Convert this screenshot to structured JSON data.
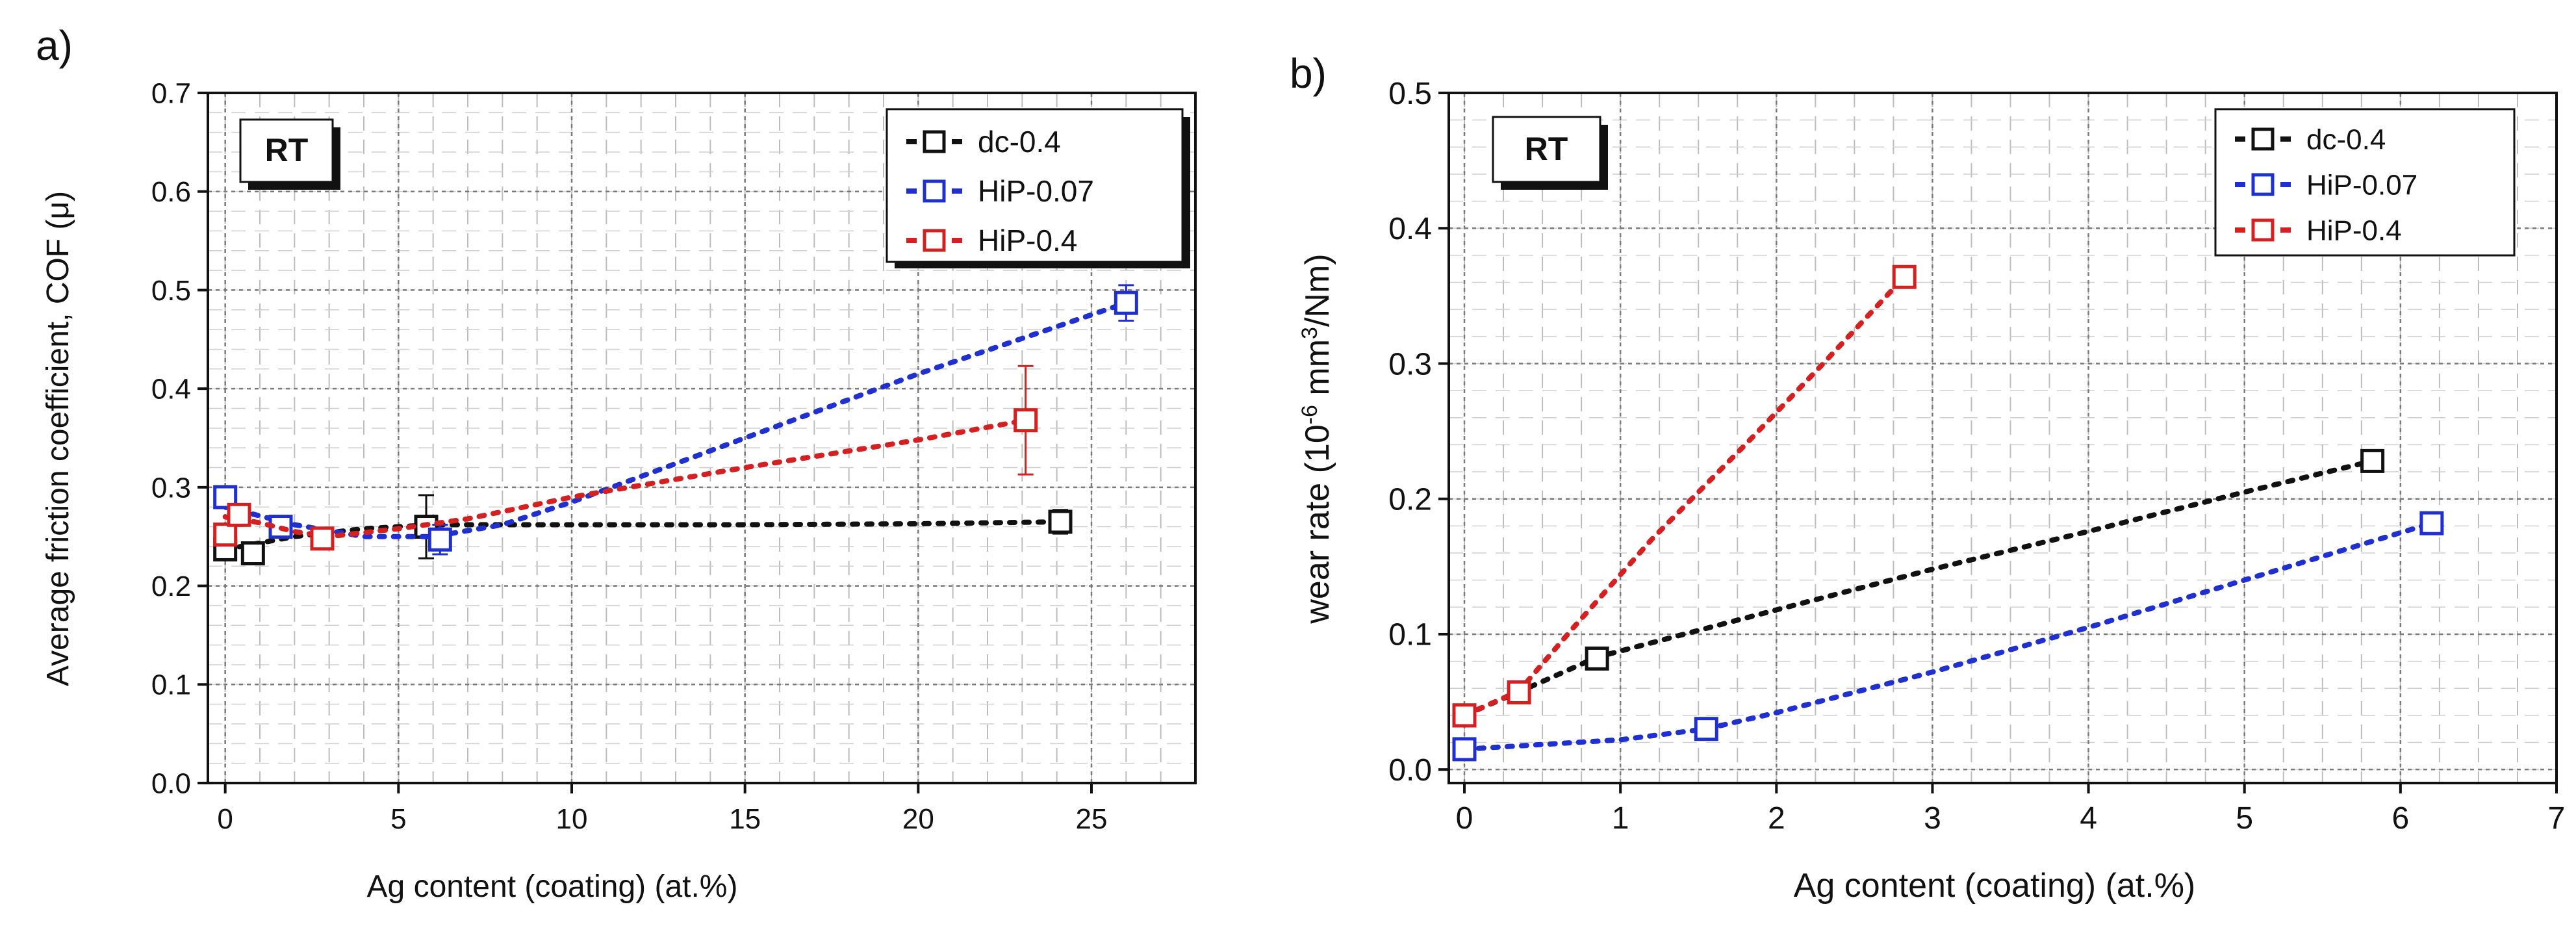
{
  "chart_data": [
    {
      "type": "scatter",
      "panel_label": "a)",
      "badge": "RT",
      "xlabel": "Ag content (coating) (at.%)",
      "ylabel": "Average friction coefficient, COF (μ)",
      "xlim": [
        -0.5,
        28
      ],
      "ylim": [
        0.0,
        0.7
      ],
      "xticks": [
        0,
        5,
        10,
        15,
        20,
        25
      ],
      "yticks": [
        0.0,
        0.1,
        0.2,
        0.3,
        0.4,
        0.5,
        0.6,
        0.7
      ],
      "x_minor_step": 1,
      "y_minor_step": 0.02,
      "legend": "top-right",
      "series": [
        {
          "name": "dc-0.4",
          "color": "#111111",
          "points": [
            {
              "x": 0,
              "y": 0.237
            },
            {
              "x": 0.8,
              "y": 0.233
            },
            {
              "x": 5.8,
              "y": 0.26,
              "err": 0.032
            },
            {
              "x": 24.1,
              "y": 0.265,
              "err": 0.012
            }
          ],
          "fit": [
            [
              0,
              0.237
            ],
            [
              2,
              0.25
            ],
            [
              4,
              0.258
            ],
            [
              6,
              0.262
            ],
            [
              10,
              0.262
            ],
            [
              15,
              0.262
            ],
            [
              20,
              0.263
            ],
            [
              24.1,
              0.265
            ]
          ]
        },
        {
          "name": "HiP-0.07",
          "color": "#1f2fd0",
          "points": [
            {
              "x": 0,
              "y": 0.29
            },
            {
              "x": 1.6,
              "y": 0.26
            },
            {
              "x": 6.2,
              "y": 0.247,
              "err": 0.015
            },
            {
              "x": 26,
              "y": 0.487,
              "err": 0.018
            }
          ],
          "fit": [
            [
              0,
              0.28
            ],
            [
              2,
              0.262
            ],
            [
              4,
              0.25
            ],
            [
              6,
              0.25
            ],
            [
              8,
              0.262
            ],
            [
              10,
              0.285
            ],
            [
              15,
              0.35
            ],
            [
              20,
              0.415
            ],
            [
              26,
              0.487
            ]
          ]
        },
        {
          "name": "HiP-0.4",
          "color": "#d42020",
          "points": [
            {
              "x": 0,
              "y": 0.252
            },
            {
              "x": 0.4,
              "y": 0.272
            },
            {
              "x": 2.8,
              "y": 0.248
            },
            {
              "x": 23.1,
              "y": 0.368,
              "err": 0.055
            }
          ],
          "fit": [
            [
              0,
              0.27
            ],
            [
              1,
              0.264
            ],
            [
              2,
              0.255
            ],
            [
              3,
              0.25
            ],
            [
              5,
              0.258
            ],
            [
              7,
              0.268
            ],
            [
              10,
              0.29
            ],
            [
              15,
              0.32
            ],
            [
              20,
              0.348
            ],
            [
              23.1,
              0.368
            ]
          ]
        }
      ]
    },
    {
      "type": "scatter",
      "panel_label": "b)",
      "badge": "RT",
      "xlabel": "Ag content (coating) (at.%)",
      "ylabel": "wear rate (10",
      "ylabel_sup1": "-6",
      "ylabel_mid": " mm",
      "ylabel_sup2": "3",
      "ylabel_end": "/Nm)",
      "xlim": [
        -0.1,
        7
      ],
      "ylim": [
        -0.01,
        0.5
      ],
      "xticks": [
        0,
        1,
        2,
        3,
        4,
        5,
        6,
        7
      ],
      "yticks": [
        0.0,
        0.1,
        0.2,
        0.3,
        0.4,
        0.5
      ],
      "x_minor_step": 0.25,
      "y_minor_step": 0.02,
      "legend": "top-right",
      "series": [
        {
          "name": "dc-0.4",
          "color": "#111111",
          "points": [
            {
              "x": 0,
              "y": 0.04
            },
            {
              "x": 0.85,
              "y": 0.082
            },
            {
              "x": 5.82,
              "y": 0.228
            }
          ],
          "fit": [
            [
              0,
              0.04
            ],
            [
              0.5,
              0.065
            ],
            [
              0.85,
              0.083
            ],
            [
              2,
              0.118
            ],
            [
              3,
              0.148
            ],
            [
              4,
              0.176
            ],
            [
              5,
              0.205
            ],
            [
              5.82,
              0.228
            ]
          ]
        },
        {
          "name": "HiP-0.07",
          "color": "#1f2fd0",
          "points": [
            {
              "x": 0,
              "y": 0.015
            },
            {
              "x": 1.55,
              "y": 0.03
            },
            {
              "x": 6.2,
              "y": 0.182
            }
          ],
          "fit": [
            [
              0,
              0.015
            ],
            [
              1,
              0.022
            ],
            [
              1.55,
              0.03
            ],
            [
              2,
              0.042
            ],
            [
              3,
              0.072
            ],
            [
              4,
              0.105
            ],
            [
              5,
              0.14
            ],
            [
              6.2,
              0.182
            ]
          ]
        },
        {
          "name": "HiP-0.4",
          "color": "#d42020",
          "points": [
            {
              "x": 0,
              "y": 0.04
            },
            {
              "x": 0.35,
              "y": 0.057
            },
            {
              "x": 2.82,
              "y": 0.364
            }
          ],
          "fit": [
            [
              0,
              0.04
            ],
            [
              0.35,
              0.058
            ],
            [
              0.7,
              0.105
            ],
            [
              1.2,
              0.17
            ],
            [
              1.8,
              0.24
            ],
            [
              2.3,
              0.3
            ],
            [
              2.82,
              0.364
            ]
          ]
        }
      ]
    }
  ]
}
